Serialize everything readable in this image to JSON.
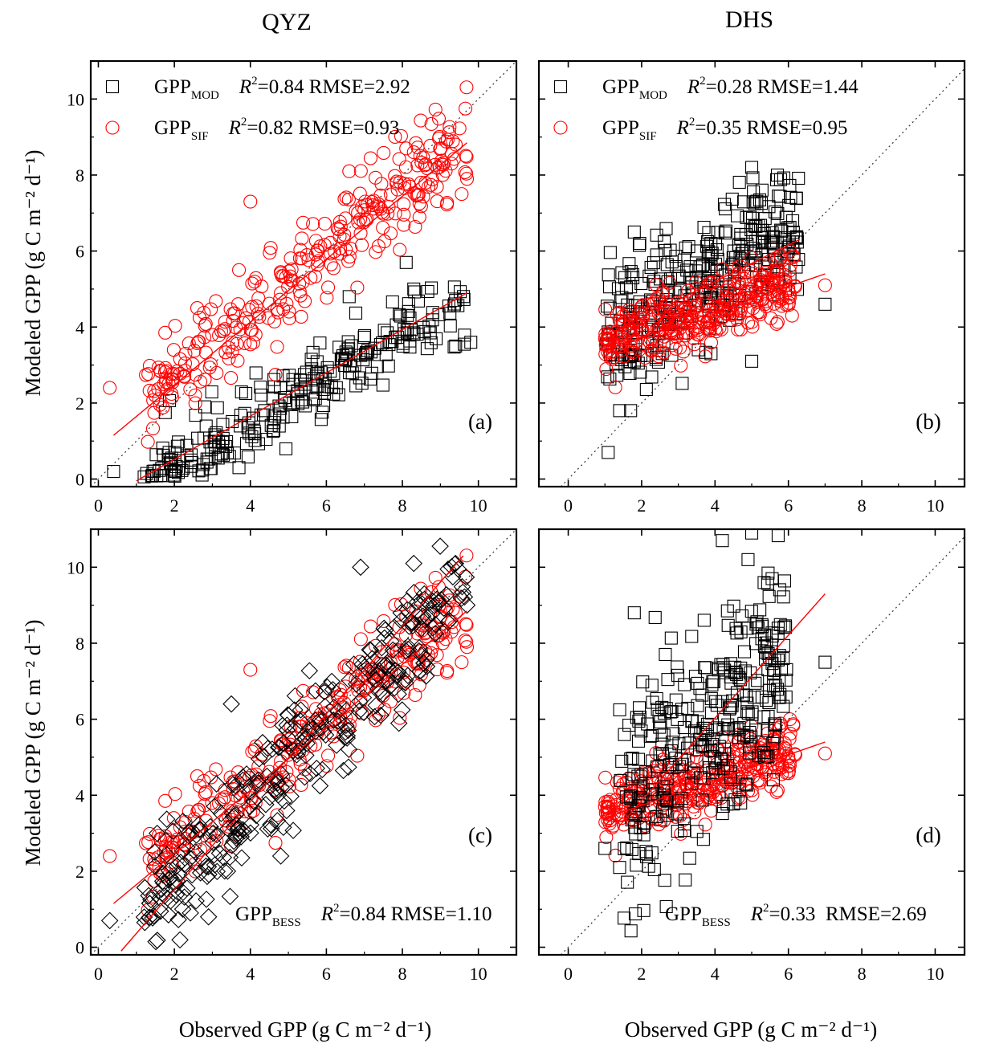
{
  "figure": {
    "col_titles": [
      "QYZ",
      "DHS"
    ],
    "ylabel": "Modeled GPP (g C m⁻² d⁻¹)",
    "xlabel": "Observed GPP (g C m⁻² d⁻¹)",
    "colors": {
      "mod": "#000000",
      "sif": "#ff0000",
      "bess": "#000000",
      "fit": "#ff0000",
      "one_to_one": "#333333"
    }
  },
  "chart_data": [
    {
      "type": "scatter",
      "panel": "(a)",
      "site": "QYZ",
      "xlim": [
        -0.2,
        11
      ],
      "ylim": [
        -0.2,
        11
      ],
      "xticks": [
        0,
        2,
        4,
        6,
        8,
        10
      ],
      "yticks": [
        0,
        2,
        4,
        6,
        8,
        10
      ],
      "show_xtick_labels": true,
      "show_ytick_labels": true,
      "one_to_one": true,
      "series": [
        {
          "name": "GPP",
          "sub": "MOD",
          "marker": "square",
          "r2": "0.84",
          "rmse": "2.92",
          "gen": {
            "n": 260,
            "xmin": 1.2,
            "xmax": 9.7,
            "slope": 0.58,
            "intercept": -0.8,
            "noise": 0.5,
            "seed": 11
          },
          "fit": {
            "x": [
              1.0,
              9.7
            ],
            "y": [
              -0.05,
              4.9
            ]
          },
          "extra": [
            [
              0.4,
              0.2
            ],
            [
              2.8,
              1.9
            ],
            [
              3.7,
              0.3
            ],
            [
              8.1,
              5.7
            ],
            [
              8.3,
              5.0
            ],
            [
              9.8,
              3.6
            ],
            [
              9.4,
              3.5
            ],
            [
              9.4,
              4.7
            ],
            [
              6.6,
              4.8
            ]
          ]
        },
        {
          "name": "GPP",
          "sub": "SIF",
          "marker": "circle",
          "r2": "0.82",
          "rmse": "0.93",
          "gen": {
            "n": 300,
            "xmin": 1.2,
            "xmax": 9.7,
            "slope": 0.8,
            "intercept": 1.2,
            "noise": 0.6,
            "seed": 23
          },
          "fit": {
            "x": [
              0.4,
              9.7
            ],
            "y": [
              1.15,
              8.85
            ]
          },
          "extra": [
            [
              0.3,
              2.4
            ],
            [
              2.6,
              4.5
            ],
            [
              8.1,
              8.7
            ],
            [
              8.3,
              8.6
            ],
            [
              9.7,
              7.9
            ],
            [
              6.6,
              8.1
            ],
            [
              3.7,
              5.5
            ],
            [
              4.0,
              7.3
            ]
          ]
        }
      ],
      "legend": "top-left",
      "label": "(a)"
    },
    {
      "type": "scatter",
      "panel": "(b)",
      "site": "DHS",
      "xlim": [
        -0.8,
        10.8
      ],
      "ylim": [
        -0.2,
        11
      ],
      "xticks": [
        0,
        2,
        4,
        6,
        8,
        10
      ],
      "yticks": [
        0,
        2,
        4,
        6,
        8,
        10
      ],
      "show_xtick_labels": true,
      "show_ytick_labels": false,
      "one_to_one": true,
      "series": [
        {
          "name": "GPP",
          "sub": "MOD",
          "marker": "square",
          "r2": "0.28",
          "rmse": "1.44",
          "gen": {
            "n": 330,
            "xmin": 1.0,
            "xmax": 6.3,
            "slope": 0.55,
            "intercept": 3.2,
            "noise": 0.9,
            "seed": 31
          },
          "fit": {
            "x": [
              1.3,
              6.3
            ],
            "y": [
              3.9,
              6.3
            ]
          },
          "extra": [
            [
              1.4,
              1.8
            ],
            [
              1.7,
              1.8
            ],
            [
              5.0,
              3.1
            ],
            [
              5.0,
              8.2
            ],
            [
              5.7,
              8.0
            ],
            [
              6.0,
              6.1
            ],
            [
              7.0,
              4.6
            ],
            [
              1.8,
              6.5
            ]
          ]
        },
        {
          "name": "GPP",
          "sub": "SIF",
          "marker": "circle",
          "r2": "0.35",
          "rmse": "0.95",
          "gen": {
            "n": 340,
            "xmin": 1.0,
            "xmax": 6.2,
            "slope": 0.33,
            "intercept": 3.2,
            "noise": 0.45,
            "seed": 47
          },
          "fit": {
            "x": [
              1.0,
              7.0
            ],
            "y": [
              3.4,
              5.4
            ]
          },
          "extra": [
            [
              7.0,
              5.1
            ],
            [
              1.0,
              3.7
            ],
            [
              6.1,
              4.3
            ]
          ]
        }
      ],
      "legend": "top-left",
      "label": "(b)"
    },
    {
      "type": "scatter",
      "panel": "(c)",
      "site": "QYZ",
      "xlim": [
        -0.2,
        11
      ],
      "ylim": [
        -0.2,
        11
      ],
      "xticks": [
        0,
        2,
        4,
        6,
        8,
        10
      ],
      "yticks": [
        0,
        2,
        4,
        6,
        8,
        10
      ],
      "show_xtick_labels": true,
      "show_ytick_labels": true,
      "one_to_one": true,
      "series": [
        {
          "name": "GPP",
          "sub": "BESS",
          "marker": "diamond",
          "r2": "0.84",
          "rmse": "1.10",
          "gen": {
            "n": 300,
            "xmin": 1.2,
            "xmax": 9.7,
            "slope": 1.04,
            "intercept": -0.4,
            "noise": 0.75,
            "seed": 59
          },
          "fit": {
            "x": [
              0.6,
              9.6
            ],
            "y": [
              -0.1,
              10.3
            ]
          },
          "extra": [
            [
              0.3,
              0.7
            ],
            [
              8.3,
              10.1
            ],
            [
              9.4,
              10.1
            ],
            [
              9.7,
              9.0
            ],
            [
              6.9,
              10.0
            ],
            [
              4.8,
              2.4
            ],
            [
              2.9,
              0.8
            ],
            [
              3.5,
              6.4
            ]
          ]
        },
        {
          "name": "GPP",
          "sub": "SIF",
          "marker": "circle",
          "r2": "",
          "rmse": "",
          "gen": {
            "n": 300,
            "xmin": 1.2,
            "xmax": 9.7,
            "slope": 0.8,
            "intercept": 1.2,
            "noise": 0.6,
            "seed": 23
          },
          "fit": {
            "x": [
              0.4,
              9.7
            ],
            "y": [
              1.15,
              8.85
            ]
          },
          "extra": [
            [
              0.3,
              2.4
            ],
            [
              2.6,
              4.5
            ],
            [
              8.1,
              8.7
            ],
            [
              9.7,
              7.9
            ],
            [
              4.0,
              7.3
            ]
          ]
        }
      ],
      "legend": "bottom-right",
      "label": "(c)"
    },
    {
      "type": "scatter",
      "panel": "(d)",
      "site": "DHS",
      "xlim": [
        -0.8,
        10.8
      ],
      "ylim": [
        -0.2,
        11
      ],
      "xticks": [
        0,
        2,
        4,
        6,
        8,
        10
      ],
      "yticks": [
        0,
        2,
        4,
        6,
        8,
        10
      ],
      "show_xtick_labels": true,
      "show_ytick_labels": false,
      "one_to_one": true,
      "series": [
        {
          "name": "GPP",
          "sub": "BESS",
          "marker": "square",
          "r2": "0.33",
          "rmse": "2.69",
          "gen": {
            "n": 330,
            "xmin": 1.4,
            "xmax": 6.0,
            "slope": 0.85,
            "intercept": 2.6,
            "noise": 1.4,
            "seed": 71
          },
          "fit": {
            "x": [
              1.4,
              7.0
            ],
            "y": [
              3.2,
              9.3
            ]
          },
          "extra": [
            [
              1.0,
              2.6
            ],
            [
              1.4,
              2.1
            ],
            [
              4.2,
              10.7
            ],
            [
              5.0,
              10.9
            ],
            [
              4.9,
              10.2
            ],
            [
              1.8,
              8.8
            ],
            [
              7.0,
              7.5
            ]
          ]
        },
        {
          "name": "GPP",
          "sub": "SIF",
          "marker": "circle",
          "r2": "",
          "rmse": "",
          "gen": {
            "n": 340,
            "xmin": 1.0,
            "xmax": 6.2,
            "slope": 0.33,
            "intercept": 3.2,
            "noise": 0.45,
            "seed": 47
          },
          "fit": {
            "x": [
              1.0,
              7.0
            ],
            "y": [
              3.4,
              5.4
            ]
          },
          "extra": [
            [
              7.0,
              5.1
            ],
            [
              1.0,
              3.7
            ]
          ]
        }
      ],
      "legend": "bottom-right",
      "label": "(d)"
    }
  ]
}
